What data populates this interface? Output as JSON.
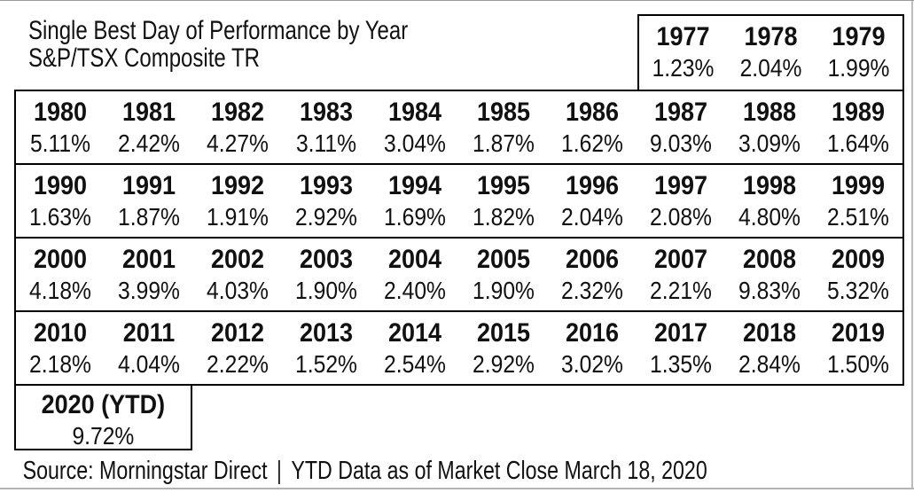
{
  "title": {
    "line1": "Single Best Day of Performance by Year",
    "line2": "S&P/TSX Composite TR"
  },
  "table": {
    "header": [
      {
        "year": "1977",
        "value": "1.23%"
      },
      {
        "year": "1978",
        "value": "2.04%"
      },
      {
        "year": "1979",
        "value": "1.99%"
      }
    ],
    "rows": [
      [
        {
          "year": "1980",
          "value": "5.11%"
        },
        {
          "year": "1981",
          "value": "2.42%"
        },
        {
          "year": "1982",
          "value": "4.27%"
        },
        {
          "year": "1983",
          "value": "3.11%"
        },
        {
          "year": "1984",
          "value": "3.04%"
        },
        {
          "year": "1985",
          "value": "1.87%"
        },
        {
          "year": "1986",
          "value": "1.62%"
        },
        {
          "year": "1987",
          "value": "9.03%"
        },
        {
          "year": "1988",
          "value": "3.09%"
        },
        {
          "year": "1989",
          "value": "1.64%"
        }
      ],
      [
        {
          "year": "1990",
          "value": "1.63%"
        },
        {
          "year": "1991",
          "value": "1.87%"
        },
        {
          "year": "1992",
          "value": "1.91%"
        },
        {
          "year": "1993",
          "value": "2.92%"
        },
        {
          "year": "1994",
          "value": "1.69%"
        },
        {
          "year": "1995",
          "value": "1.82%"
        },
        {
          "year": "1996",
          "value": "2.04%"
        },
        {
          "year": "1997",
          "value": "2.08%"
        },
        {
          "year": "1998",
          "value": "4.80%"
        },
        {
          "year": "1999",
          "value": "2.51%"
        }
      ],
      [
        {
          "year": "2000",
          "value": "4.18%"
        },
        {
          "year": "2001",
          "value": "3.99%"
        },
        {
          "year": "2002",
          "value": "4.03%"
        },
        {
          "year": "2003",
          "value": "1.90%"
        },
        {
          "year": "2004",
          "value": "2.40%"
        },
        {
          "year": "2005",
          "value": "1.90%"
        },
        {
          "year": "2006",
          "value": "2.32%"
        },
        {
          "year": "2007",
          "value": "2.21%"
        },
        {
          "year": "2008",
          "value": "9.83%"
        },
        {
          "year": "2009",
          "value": "5.32%"
        }
      ],
      [
        {
          "year": "2010",
          "value": "2.18%"
        },
        {
          "year": "2011",
          "value": "4.04%"
        },
        {
          "year": "2012",
          "value": "2.22%"
        },
        {
          "year": "2013",
          "value": "1.52%"
        },
        {
          "year": "2014",
          "value": "2.54%"
        },
        {
          "year": "2015",
          "value": "2.92%"
        },
        {
          "year": "2016",
          "value": "3.02%"
        },
        {
          "year": "2017",
          "value": "1.35%"
        },
        {
          "year": "2018",
          "value": "2.84%"
        },
        {
          "year": "2019",
          "value": "1.50%"
        }
      ]
    ],
    "ytd": {
      "label": "2020 (YTD)",
      "value": "9.72%"
    }
  },
  "footer": {
    "source": "Source: Morningstar Direct",
    "separator": "|",
    "note": "YTD Data as of Market Close March 18, 2020"
  },
  "colors": {
    "text": "#111111",
    "border": "#000000",
    "edge_gray": "#b5b7b9",
    "background": "#ffffff"
  },
  "chart_data": {
    "type": "table",
    "title": "Single Best Day of Performance by Year",
    "subtitle": "S&P/TSX Composite TR",
    "unit": "%",
    "categories": [
      "1977",
      "1978",
      "1979",
      "1980",
      "1981",
      "1982",
      "1983",
      "1984",
      "1985",
      "1986",
      "1987",
      "1988",
      "1989",
      "1990",
      "1991",
      "1992",
      "1993",
      "1994",
      "1995",
      "1996",
      "1997",
      "1998",
      "1999",
      "2000",
      "2001",
      "2002",
      "2003",
      "2004",
      "2005",
      "2006",
      "2007",
      "2008",
      "2009",
      "2010",
      "2011",
      "2012",
      "2013",
      "2014",
      "2015",
      "2016",
      "2017",
      "2018",
      "2019",
      "2020 (YTD)"
    ],
    "values": [
      1.23,
      2.04,
      1.99,
      5.11,
      2.42,
      4.27,
      3.11,
      3.04,
      1.87,
      1.62,
      9.03,
      3.09,
      1.64,
      1.63,
      1.87,
      1.91,
      2.92,
      1.69,
      1.82,
      2.04,
      2.08,
      4.8,
      2.51,
      4.18,
      3.99,
      4.03,
      1.9,
      2.4,
      1.9,
      2.32,
      2.21,
      9.83,
      5.32,
      2.18,
      4.04,
      2.22,
      1.52,
      2.54,
      2.92,
      3.02,
      1.35,
      2.84,
      1.5,
      9.72
    ],
    "source": "Source: Morningstar Direct | YTD Data as of Market Close March 18, 2020"
  }
}
